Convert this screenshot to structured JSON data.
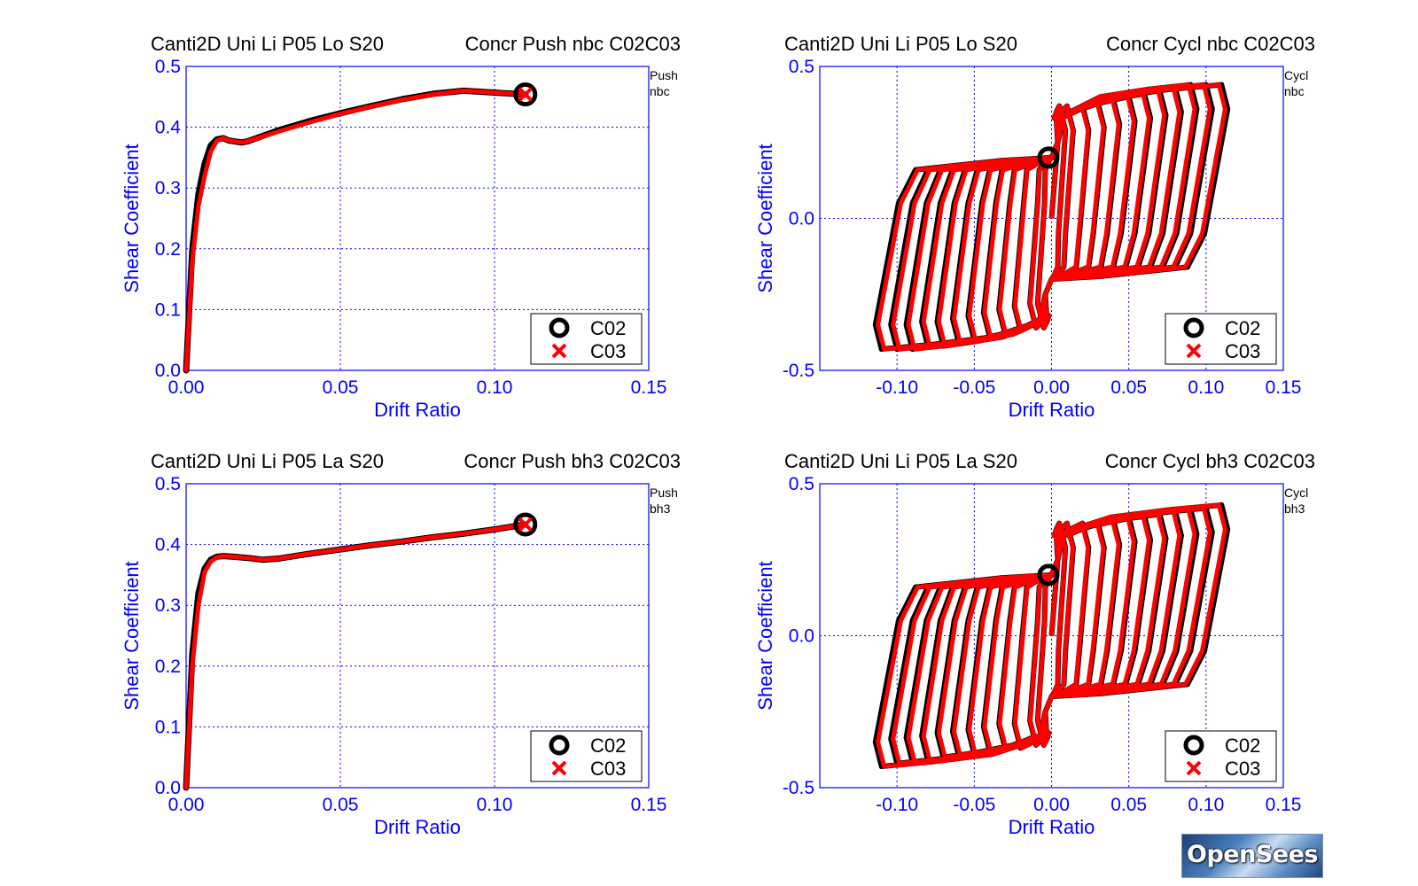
{
  "chart_data": [
    {
      "id": "tl",
      "type": "line",
      "title_left": "Canti2D Uni Li P05 Lo S20",
      "title_right": "Concr Push nbc C02C03",
      "side_note": [
        "Push",
        "nbc"
      ],
      "xlabel": "Drift Ratio",
      "ylabel": "Shear Coefficient",
      "xlim": [
        0.0,
        0.15
      ],
      "ylim": [
        0.0,
        0.5
      ],
      "xticks": [
        0.0,
        0.05,
        0.1,
        0.15
      ],
      "xtick_labels": [
        "0.00",
        "0.05",
        "0.10",
        "0.15"
      ],
      "yticks": [
        0.0,
        0.1,
        0.2,
        0.3,
        0.4,
        0.5
      ],
      "ytick_labels": [
        "0.0",
        "0.1",
        "0.2",
        "0.3",
        "0.4",
        "0.5"
      ],
      "grid": true,
      "legend": {
        "position": "bottom-right",
        "entries": [
          "C02",
          "C03"
        ]
      },
      "series": [
        {
          "name": "C02",
          "color": "#000000",
          "marker": "circle",
          "x": [
            0,
            0.002,
            0.004,
            0.006,
            0.008,
            0.01,
            0.012,
            0.014,
            0.018,
            0.02,
            0.03,
            0.04,
            0.05,
            0.06,
            0.07,
            0.08,
            0.09,
            0.1,
            0.11
          ],
          "y": [
            0,
            0.2,
            0.29,
            0.34,
            0.37,
            0.38,
            0.382,
            0.378,
            0.375,
            0.377,
            0.395,
            0.41,
            0.423,
            0.435,
            0.446,
            0.455,
            0.46,
            0.457,
            0.454
          ]
        },
        {
          "name": "C03",
          "color": "#ff0000",
          "marker": "x",
          "x": [
            0,
            0.002,
            0.004,
            0.006,
            0.008,
            0.01,
            0.012,
            0.014,
            0.018,
            0.02,
            0.03,
            0.04,
            0.05,
            0.06,
            0.07,
            0.08,
            0.09,
            0.1,
            0.11
          ],
          "y": [
            0,
            0.18,
            0.27,
            0.32,
            0.36,
            0.378,
            0.382,
            0.378,
            0.375,
            0.377,
            0.393,
            0.408,
            0.422,
            0.434,
            0.445,
            0.454,
            0.46,
            0.457,
            0.454
          ]
        }
      ]
    },
    {
      "id": "tr",
      "type": "line",
      "title_left": "Canti2D Uni Li P05 Lo S20",
      "title_right": "Concr Cycl nbc C02C03",
      "side_note": [
        "Cycl",
        "nbc"
      ],
      "xlabel": "Drift Ratio",
      "ylabel": "Shear Coefficient",
      "xlim": [
        -0.15,
        0.15
      ],
      "ylim": [
        -0.5,
        0.5
      ],
      "xticks": [
        -0.1,
        -0.05,
        0.0,
        0.05,
        0.1,
        0.15
      ],
      "xtick_labels": [
        "-0.10",
        "-0.05",
        "0.00",
        "0.05",
        "0.10",
        "0.15"
      ],
      "yticks": [
        -0.5,
        0.0,
        0.5
      ],
      "ytick_labels": [
        "-0.5",
        "0.0",
        "0.5"
      ],
      "grid": true,
      "grid_x": [
        -0.15,
        -0.1,
        -0.05,
        0.0,
        0.05,
        0.1,
        0.15
      ],
      "grid_y": [
        -0.5,
        0.0,
        0.5
      ],
      "legend": {
        "position": "bottom-right",
        "entries": [
          "C02",
          "C03"
        ]
      },
      "cycles": {
        "amplitudes": [
          0.005,
          0.01,
          0.02,
          0.03,
          0.04,
          0.05,
          0.06,
          0.07,
          0.08,
          0.09,
          0.1,
          0.11
        ],
        "peak_shear_positive": [
          0.37,
          0.37,
          0.37,
          0.38,
          0.39,
          0.4,
          0.41,
          0.42,
          0.43,
          0.44,
          0.44,
          0.44
        ],
        "peak_shear_negative": [
          -0.36,
          -0.36,
          -0.37,
          -0.38,
          -0.39,
          -0.4,
          -0.41,
          -0.42,
          -0.42,
          -0.43,
          -0.43,
          -0.43
        ],
        "pinch_shear_at_zero_drift": 0.2
      },
      "series": [
        {
          "name": "C02",
          "color": "#000000",
          "marker": "circle",
          "lineWidth": 6
        },
        {
          "name": "C03",
          "color": "#ff0000",
          "marker": "x",
          "lineWidth": 5
        }
      ],
      "end_marker": {
        "x": -0.002,
        "y": 0.2
      }
    },
    {
      "id": "bl",
      "type": "line",
      "title_left": "Canti2D Uni Li P05 La S20",
      "title_right": "Concr Push bh3 C02C03",
      "side_note": [
        "Push",
        "bh3"
      ],
      "xlabel": "Drift Ratio",
      "ylabel": "Shear Coefficient",
      "xlim": [
        0.0,
        0.15
      ],
      "ylim": [
        0.0,
        0.5
      ],
      "xticks": [
        0.0,
        0.05,
        0.1,
        0.15
      ],
      "xtick_labels": [
        "0.00",
        "0.05",
        "0.10",
        "0.15"
      ],
      "yticks": [
        0.0,
        0.1,
        0.2,
        0.3,
        0.4,
        0.5
      ],
      "ytick_labels": [
        "0.0",
        "0.1",
        "0.2",
        "0.3",
        "0.4",
        "0.5"
      ],
      "grid": true,
      "legend": {
        "position": "bottom-right",
        "entries": [
          "C02",
          "C03"
        ]
      },
      "series": [
        {
          "name": "C02",
          "color": "#000000",
          "marker": "circle",
          "x": [
            0,
            0.002,
            0.004,
            0.006,
            0.008,
            0.01,
            0.012,
            0.015,
            0.02,
            0.025,
            0.03,
            0.04,
            0.05,
            0.06,
            0.07,
            0.08,
            0.09,
            0.1,
            0.11
          ],
          "y": [
            0,
            0.22,
            0.32,
            0.36,
            0.375,
            0.38,
            0.381,
            0.38,
            0.378,
            0.375,
            0.377,
            0.385,
            0.392,
            0.399,
            0.405,
            0.412,
            0.418,
            0.425,
            0.433
          ]
        },
        {
          "name": "C03",
          "color": "#ff0000",
          "marker": "x",
          "x": [
            0,
            0.002,
            0.004,
            0.006,
            0.008,
            0.01,
            0.012,
            0.015,
            0.02,
            0.025,
            0.03,
            0.04,
            0.05,
            0.06,
            0.07,
            0.08,
            0.09,
            0.1,
            0.11
          ],
          "y": [
            0,
            0.2,
            0.3,
            0.355,
            0.372,
            0.379,
            0.381,
            0.38,
            0.378,
            0.375,
            0.377,
            0.385,
            0.392,
            0.399,
            0.405,
            0.412,
            0.418,
            0.425,
            0.433
          ]
        }
      ]
    },
    {
      "id": "br",
      "type": "line",
      "title_left": "Canti2D Uni Li P05 La S20",
      "title_right": "Concr Cycl bh3 C02C03",
      "side_note": [
        "Cycl",
        "bh3"
      ],
      "xlabel": "Drift Ratio",
      "ylabel": "Shear Coefficient",
      "xlim": [
        -0.15,
        0.15
      ],
      "ylim": [
        -0.5,
        0.5
      ],
      "xticks": [
        -0.1,
        -0.05,
        0.0,
        0.05,
        0.1,
        0.15
      ],
      "xtick_labels": [
        "-0.10",
        "-0.05",
        "0.00",
        "0.05",
        "0.10",
        "0.15"
      ],
      "yticks": [
        -0.5,
        0.0,
        0.5
      ],
      "ytick_labels": [
        "-0.5",
        "0.0",
        "0.5"
      ],
      "grid": true,
      "grid_x": [
        -0.15,
        -0.1,
        -0.05,
        0.0,
        0.05,
        0.1,
        0.15
      ],
      "grid_y": [
        -0.5,
        0.0,
        0.5
      ],
      "legend": {
        "position": "bottom-right",
        "entries": [
          "C02",
          "C03"
        ]
      },
      "cycles": {
        "amplitudes": [
          0.005,
          0.01,
          0.02,
          0.03,
          0.04,
          0.05,
          0.06,
          0.07,
          0.08,
          0.09,
          0.1,
          0.11
        ],
        "peak_shear_positive": [
          0.37,
          0.37,
          0.37,
          0.37,
          0.38,
          0.39,
          0.395,
          0.4,
          0.41,
          0.415,
          0.42,
          0.43
        ],
        "peak_shear_negative": [
          -0.36,
          -0.36,
          -0.37,
          -0.37,
          -0.38,
          -0.39,
          -0.395,
          -0.4,
          -0.41,
          -0.415,
          -0.42,
          -0.43
        ],
        "pinch_shear_at_zero_drift": 0.2
      },
      "series": [
        {
          "name": "C02",
          "color": "#000000",
          "marker": "circle",
          "lineWidth": 6
        },
        {
          "name": "C03",
          "color": "#ff0000",
          "marker": "x",
          "lineWidth": 5
        }
      ],
      "end_marker": {
        "x": -0.002,
        "y": 0.2
      }
    }
  ],
  "logo": {
    "text": "OpenSees"
  },
  "colors": {
    "axis": "#0000ff",
    "grid": "#0000ff",
    "c02": "#000000",
    "c03": "#ff0000"
  }
}
